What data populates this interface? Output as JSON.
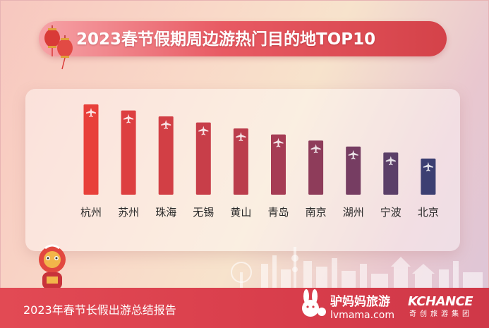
{
  "header": {
    "title": "2023春节假期周边游热门目的地TOP10"
  },
  "chart_data": {
    "type": "bar",
    "title": "2023春节假期周边游热门目的地TOP10",
    "categories": [
      "杭州",
      "苏州",
      "珠海",
      "无锡",
      "黄山",
      "青岛",
      "南京",
      "湖州",
      "宁波",
      "北京"
    ],
    "values": [
      10,
      9.33,
      8.67,
      8.0,
      7.33,
      6.67,
      6.0,
      5.33,
      4.67,
      4.0
    ],
    "ylim": [
      0,
      10
    ],
    "show_value_axis": false,
    "grid": false,
    "legend": "none",
    "bar_icon": "airplane-icon",
    "colors": [
      "#e8403a",
      "#dd3f40",
      "#d23f45",
      "#c83e49",
      "#bb3d4c",
      "#a63c54",
      "#8e3c5a",
      "#763d62",
      "#5b3f68",
      "#3c3f72"
    ]
  },
  "footer": {
    "report_title": "2023年春节长假出游总结报告",
    "brand_name": "驴妈妈旅游",
    "brand_url": "lvmama.com",
    "partner_name": "KCHANCE",
    "partner_sub": "奇创旅游集团"
  }
}
